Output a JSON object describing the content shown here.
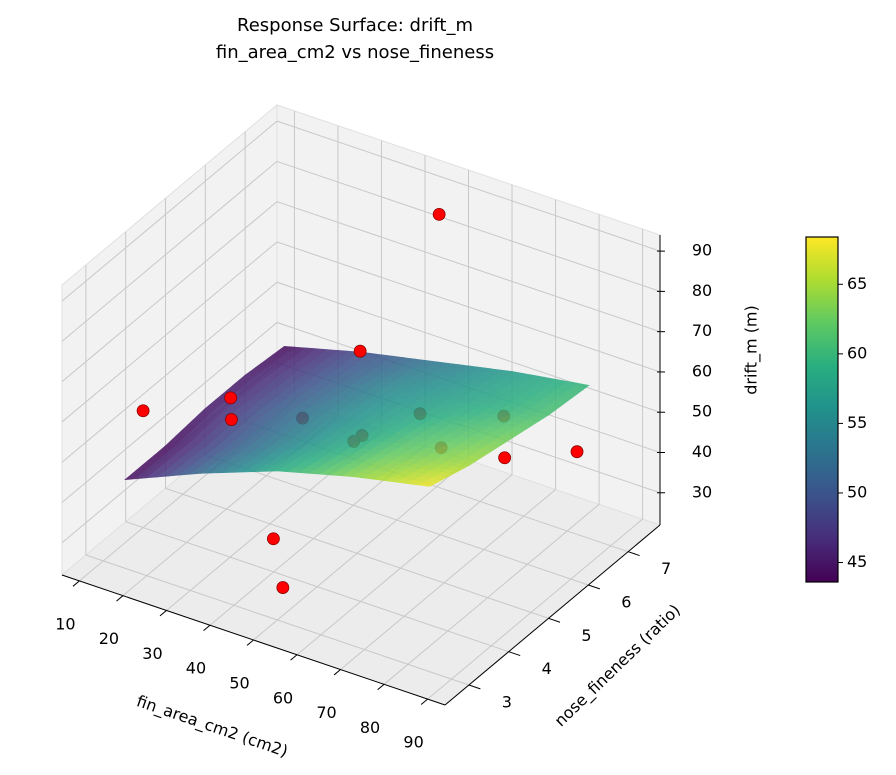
{
  "chart_data": {
    "type": "surface3d",
    "title": "Response Surface: drift_m",
    "subtitle": "fin_area_cm2 vs nose_fineness",
    "xlabel": "fin_area_cm2 (cm2)",
    "ylabel": "nose_fineness (ratio)",
    "zlabel": "drift_m (m)",
    "xlim": [
      6,
      94
    ],
    "ylim": [
      2.4,
      7.8
    ],
    "zlim": [
      22,
      94
    ],
    "xticks": [
      10,
      20,
      30,
      40,
      50,
      60,
      70,
      80,
      90
    ],
    "yticks": [
      3,
      4,
      5,
      6,
      7
    ],
    "zticks": [
      30,
      40,
      50,
      60,
      70,
      80,
      90
    ],
    "grid": true,
    "surface": {
      "colormap": "viridis",
      "alpha": 0.85,
      "x": [
        15,
        32.5,
        50,
        67.5,
        85
      ],
      "y": [
        3,
        4,
        5,
        6,
        7
      ],
      "z": [
        [
          44,
          52,
          59,
          64,
          68
        ],
        [
          44,
          51,
          57,
          62,
          65
        ],
        [
          45,
          51,
          56,
          60,
          63
        ],
        [
          45,
          50,
          55,
          58,
          61
        ],
        [
          44,
          49,
          53,
          57,
          60
        ]
      ]
    },
    "colorbar": {
      "clim": [
        43.6,
        68.4
      ],
      "ticks": [
        45,
        50,
        55,
        60,
        65
      ]
    },
    "points": {
      "color": "#ff0000",
      "edgecolor": "#8b0000",
      "x": [
        46,
        37,
        10,
        50,
        54,
        83,
        85,
        10,
        12,
        32,
        53,
        52,
        59,
        70,
        73
      ],
      "y": [
        7.5,
        6.5,
        4,
        2.9,
        2.7,
        5.1,
        6.7,
        6.2,
        6,
        5.6,
        4.8,
        4.7,
        5.6,
        6.5,
        4.6
      ],
      "z": [
        84,
        55,
        51,
        43,
        34,
        57,
        46,
        36,
        33,
        44,
        54,
        53,
        55,
        51,
        60
      ]
    }
  }
}
